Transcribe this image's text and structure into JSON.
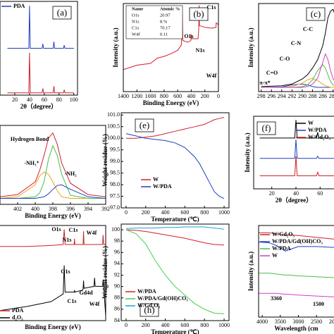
{
  "chart_data": [
    {
      "type": "line",
      "title": "(a)",
      "xlabel": "2θ（degree）",
      "xlim": [
        0,
        105
      ],
      "xticks": [
        20,
        40,
        60,
        80,
        100
      ],
      "ylim": [
        0,
        2.1
      ],
      "x": [
        10,
        39,
        40,
        41,
        57,
        58,
        59,
        72,
        73,
        74,
        86,
        87,
        88,
        100
      ],
      "series": [
        {
          "name": "PDA",
          "color": "#1f3fbf",
          "values": [
            1.05,
            1.05,
            2.0,
            1.05,
            1.05,
            1.15,
            1.05,
            1.05,
            1.2,
            1.05,
            1.05,
            1.12,
            1.05,
            1.05
          ]
        },
        {
          "color": "#d0202a",
          "values": [
            0.05,
            0.05,
            0.95,
            0.05,
            0.05,
            0.15,
            0.05,
            0.05,
            0.2,
            0.05,
            0.05,
            0.12,
            0.05,
            0.05
          ]
        }
      ]
    },
    {
      "type": "line",
      "title": "(b)",
      "xlabel": "Binding Energy (eV)",
      "ylabel": "Intensity (a.u.)",
      "xlim": [
        1400,
        0
      ],
      "xticks": [
        1400,
        1200,
        1000,
        800,
        600,
        400,
        200,
        0
      ],
      "ylim": [
        0,
        10
      ],
      "x": [
        1400,
        1200,
        1000,
        900,
        800,
        700,
        600,
        545,
        532,
        525,
        450,
        405,
        399,
        395,
        300,
        290,
        284,
        280,
        200,
        100,
        35,
        33,
        0
      ],
      "series": [
        {
          "color": "#d0202a",
          "values": [
            2.5,
            3.0,
            3.2,
            3.8,
            4.0,
            4.3,
            4.7,
            5.3,
            8.8,
            5.8,
            5.6,
            5.8,
            6.5,
            6.0,
            6.0,
            7.0,
            9.8,
            7.5,
            7.3,
            7.2,
            7.3,
            7.8,
            7.6
          ]
        }
      ],
      "annotations": [
        "O1s",
        "N1s",
        "C1s",
        "W4f"
      ],
      "table": {
        "header": [
          "Name",
          "Atomic %"
        ],
        "rows": [
          [
            "O1s",
            "20.97"
          ],
          [
            "N1s",
            "8.%"
          ],
          [
            "C1s",
            "70.17"
          ],
          [
            "W4f",
            "0.11"
          ]
        ]
      }
    },
    {
      "type": "line",
      "title": "(c)",
      "ylabel": "Intensity (a.u.)",
      "xlim": [
        298.5,
        283
      ],
      "xticks": [
        298,
        296,
        294,
        292,
        290,
        288,
        286,
        284
      ],
      "ylim": [
        0,
        10.5
      ],
      "x": [
        298,
        294,
        292,
        290,
        289,
        288,
        287,
        286,
        285.5,
        285,
        284.5,
        284,
        283
      ],
      "series": [
        {
          "color": "#000000",
          "values": [
            0.6,
            0.7,
            0.9,
            1.5,
            2.0,
            2.8,
            3.8,
            5.5,
            7.0,
            8.8,
            9.6,
            9.8,
            8.0
          ]
        },
        {
          "color": "#1f3fbf",
          "values": [
            0.5,
            0.55,
            0.8,
            0.9,
            0.8,
            0.6,
            0.5,
            0.5,
            0.5,
            0.5,
            0.5,
            0.5,
            0.5
          ]
        },
        {
          "color": "#f0a020",
          "values": [
            0.5,
            0.5,
            0.6,
            1.0,
            1.4,
            1.6,
            1.3,
            0.9,
            0.7,
            0.6,
            0.5,
            0.5,
            0.5
          ]
        },
        {
          "color": "#44c04a",
          "values": [
            0.5,
            0.5,
            0.5,
            0.6,
            0.8,
            1.4,
            2.5,
            3.2,
            2.8,
            2.0,
            1.2,
            0.8,
            0.5
          ]
        },
        {
          "color": "#d040c0",
          "values": [
            0.5,
            0.5,
            0.5,
            0.5,
            0.6,
            0.9,
            1.6,
            3.5,
            4.5,
            3.8,
            2.5,
            1.5,
            0.8
          ]
        }
      ],
      "annotations": [
        "C-C",
        "C-N",
        "C-O",
        "C=O",
        "π-π*"
      ]
    },
    {
      "type": "line",
      "xlabel": "Binding Energy (eV)",
      "xlim": [
        404,
        392
      ],
      "xticks": [
        402,
        400,
        398,
        396,
        394,
        392
      ],
      "ylim": [
        0,
        10.5
      ],
      "x": [
        404,
        402,
        400,
        399.5,
        399,
        398.5,
        398,
        397.5,
        397,
        396,
        394,
        392
      ],
      "series": [
        {
          "color": "#d0202a",
          "values": [
            1.0,
            1.3,
            3.0,
            4.5,
            6.5,
            8.8,
            9.5,
            8.0,
            5.5,
            2.8,
            1.3,
            1.0
          ]
        },
        {
          "color": "#f0a020",
          "values": [
            0.8,
            1.0,
            2.6,
            3.8,
            4.3,
            4.0,
            3.0,
            1.8,
            1.0,
            0.8,
            0.8,
            0.8
          ]
        },
        {
          "color": "#44c04a",
          "values": [
            0.8,
            0.8,
            1.0,
            1.5,
            3.0,
            6.0,
            7.8,
            6.5,
            4.0,
            1.2,
            0.8,
            0.8
          ]
        },
        {
          "color": "#1f3fbf",
          "values": [
            0.8,
            0.8,
            0.8,
            0.9,
            1.0,
            1.4,
            2.0,
            2.5,
            2.6,
            2.0,
            1.0,
            0.8
          ]
        }
      ],
      "annotations": [
        "Hydrogen Bond",
        "-NH₃⁺",
        "-NH₂"
      ]
    },
    {
      "type": "line",
      "title": "(e)",
      "xlabel": "Temperature (℃)",
      "ylabel": "Weight residue (%)",
      "xlim": [
        -50,
        1050
      ],
      "xticks": [
        0,
        200,
        400,
        600,
        800,
        1000
      ],
      "ylim": [
        97,
        101.1
      ],
      "yticks": [
        {
          "value": 97,
          "label": "97.0"
        },
        {
          "value": 97.5,
          "label": "97.5"
        },
        {
          "value": 98,
          "label": "98.0"
        },
        {
          "value": 98.5,
          "label": "98.5"
        },
        {
          "value": 99,
          "label": "99.0"
        },
        {
          "value": 99.5,
          "label": "99.5"
        },
        {
          "value": 100,
          "label": "100.0"
        },
        {
          "value": 100.5,
          "label": "100.5"
        },
        {
          "value": 101,
          "label": "101.0"
        }
      ],
      "x": [
        0,
        100,
        200,
        300,
        400,
        500,
        600,
        700,
        750,
        800,
        850,
        900,
        950,
        1000
      ],
      "series": [
        {
          "name": "W",
          "color": "#d0202a",
          "values": [
            100.0,
            100.0,
            100.05,
            100.1,
            100.2,
            100.3,
            100.4,
            100.5,
            100.55,
            100.6,
            100.7,
            100.8,
            100.85,
            100.9
          ]
        },
        {
          "name": "W/PDA",
          "color": "#1f3fbf",
          "values": [
            100.2,
            100.1,
            100.0,
            99.95,
            99.9,
            99.8,
            99.6,
            99.2,
            98.9,
            98.5,
            98.1,
            97.7,
            97.5,
            97.4
          ]
        }
      ]
    },
    {
      "type": "line",
      "title": "(f)",
      "xlabel": "2θ（degree）",
      "ylabel": "Intensity (a.u.)",
      "xlim": [
        5,
        75
      ],
      "xticks": [
        20,
        40,
        60
      ],
      "ylim": [
        0,
        10
      ],
      "x": [
        10,
        39,
        40,
        41,
        57,
        58,
        59,
        75
      ],
      "series": [
        {
          "name": "W",
          "color": "#000000",
          "values": [
            7,
            7,
            9.5,
            7,
            7,
            7.8,
            7,
            7
          ]
        },
        {
          "name": "W/PDA",
          "color": "#1f3fbf",
          "values": [
            4.2,
            4.2,
            6.8,
            4.2,
            4.2,
            4.5,
            4.2,
            4.2
          ]
        },
        {
          "name": "W/Gd₂O₃",
          "color": "#d0202a",
          "values": [
            1.8,
            1.8,
            4.5,
            1.8,
            1.8,
            2.3,
            1.8,
            1.8
          ]
        }
      ]
    },
    {
      "type": "line",
      "xlabel": "Binding Energy (eV)",
      "xlim": [
        1400,
        0
      ],
      "ylim": [
        0,
        10
      ],
      "x": [
        1400,
        1000,
        700,
        545,
        532,
        520,
        405,
        399,
        395,
        300,
        290,
        284,
        278,
        150,
        143,
        135,
        40,
        33,
        25,
        0
      ],
      "series": [
        {
          "name": "PDA",
          "color": "#d0202a",
          "values": [
            7.8,
            7.8,
            7.9,
            8.0,
            9.6,
            8.0,
            8.0,
            8.6,
            8.0,
            8.0,
            8.0,
            9.4,
            8.0,
            8.0,
            8.0,
            8.0,
            8.0,
            9.0,
            8.0,
            8.0
          ]
        },
        {
          "name": "d₂O₃",
          "color": "#000000",
          "values": [
            1.0,
            1.5,
            2.0,
            2.8,
            5.8,
            3.0,
            3.0,
            3.2,
            3.0,
            3.2,
            3.3,
            4.2,
            3.4,
            3.6,
            4.5,
            3.6,
            3.6,
            4.3,
            3.5,
            0.5
          ]
        }
      ],
      "annotations": [
        "O1s",
        "N1s",
        "C1s",
        "W4f",
        "O1s",
        "Gd4d",
        "C1s",
        "W4f"
      ]
    },
    {
      "type": "line",
      "title": "(h)",
      "xlabel": "Temperature (℃)",
      "ylabel": "Weight residue (%)",
      "xlim": [
        -50,
        1050
      ],
      "xticks": [
        0,
        200,
        400,
        600,
        800,
        1000
      ],
      "ylim": [
        84,
        101
      ],
      "yticks": [
        84,
        86,
        88,
        90,
        92,
        94,
        96,
        98,
        100
      ],
      "x": [
        0,
        100,
        200,
        300,
        400,
        500,
        600,
        700,
        800,
        900,
        1000
      ],
      "series": [
        {
          "name": "W/PDA",
          "color": "#d0202a",
          "values": [
            100,
            99.9,
            99.7,
            99.4,
            99.1,
            98.8,
            98.5,
            98.1,
            97.7,
            97.4,
            97.3
          ]
        },
        {
          "name": "W/PDA/Gd(OH)CO₃",
          "color": "#44d04a",
          "values": [
            100,
            99.3,
            97.5,
            94.5,
            92,
            90,
            88.5,
            87,
            86,
            85.3,
            85.2
          ]
        },
        {
          "name": "W/Gd₂O₃",
          "color": "#1f9fd0",
          "values": [
            100.2,
            100.3,
            100.3,
            100.3,
            100.4,
            100.4,
            100.5,
            100.5,
            100.5,
            100.3,
            100.1
          ]
        }
      ]
    },
    {
      "type": "line",
      "xlabel": "Wavelength (cm",
      "ylabel": "Intensity (a.u.)",
      "xlim": [
        4100,
        1900
      ],
      "xticks": [
        4000,
        3500,
        3000,
        2500,
        2000
      ],
      "ylim": [
        0,
        10
      ],
      "x": [
        4100,
        3800,
        3600,
        3400,
        3360,
        3300,
        3000,
        2500,
        2000,
        1900
      ],
      "series": [
        {
          "name": "W/Gd₂O₃",
          "color": "#d0202a",
          "values": [
            9.2,
            9.2,
            9.1,
            9.0,
            8.9,
            9.0,
            8.9,
            8.7,
            8.5,
            8.4
          ]
        },
        {
          "name": "W/PDA/Gd(OH)CO₃",
          "color": "#1f3fbf",
          "values": [
            8.2,
            8.1,
            7.8,
            7.3,
            7.2,
            7.3,
            7.7,
            7.7,
            7.6,
            7.5
          ]
        },
        {
          "name": "W/PDA",
          "color": "#44c04a",
          "values": [
            4.8,
            4.8,
            4.7,
            4.6,
            4.6,
            4.6,
            4.5,
            4.4,
            4.3,
            4.2
          ]
        },
        {
          "name": "W",
          "color": "#d040c0",
          "values": [
            2.6,
            2.6,
            2.6,
            2.5,
            2.5,
            2.5,
            2.4,
            2.3,
            2.2,
            2.2
          ]
        }
      ],
      "annotations": [
        "3360",
        "1500"
      ]
    }
  ]
}
